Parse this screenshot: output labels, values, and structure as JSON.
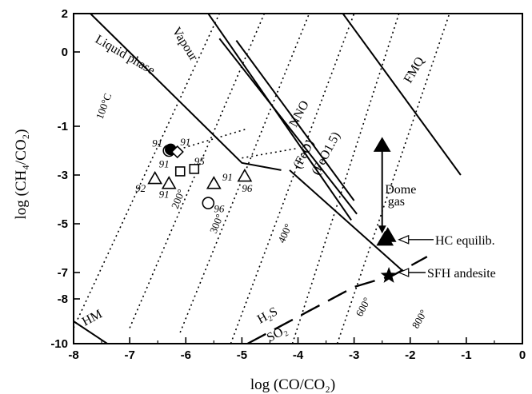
{
  "chart_data": {
    "type": "scatter",
    "xlabel": "log (CO/CO₂)",
    "ylabel": "log (CH₄/CO₂)",
    "xlim": [
      -8,
      0
    ],
    "ylim": [
      -10,
      2
    ],
    "y_scale_breaks": [
      [
        -10,
        -8
      ],
      [
        -8,
        -7
      ],
      [
        -7,
        -1
      ],
      [
        -1,
        2
      ]
    ],
    "x_ticks": [
      -8,
      -7,
      -6,
      -5,
      -4,
      -3,
      -2,
      -1,
      0
    ],
    "x_tick_labels": [
      "-8",
      "-7",
      "-6",
      "-5",
      "-4",
      "-3",
      "-2",
      "-1",
      "0"
    ],
    "y_ticks": [
      2,
      0,
      -1,
      -3,
      -5,
      -7,
      -8,
      -10
    ],
    "y_tick_labels": [
      "2",
      "0",
      "-1",
      "-3",
      "-5",
      "-7",
      "-8",
      "-10"
    ],
    "grid": false,
    "buffer_curves": [
      {
        "label": "Liquid phase",
        "points": [
          [
            -7.7,
            2.0
          ],
          [
            -5.0,
            -2.5
          ],
          [
            -4.3,
            -2.8
          ]
        ]
      },
      {
        "label": "Vapour",
        "points": [
          [
            -5.6,
            2.0
          ],
          [
            -3.05,
            -4.85
          ]
        ]
      },
      {
        "label": "NNO",
        "points": [
          [
            -5.1,
            0.6
          ],
          [
            -3.0,
            -4.05
          ]
        ]
      },
      {
        "label": "(FeO)",
        "points": [
          [
            -5.4,
            0.7
          ],
          [
            -2.95,
            -4.6
          ]
        ]
      },
      {
        "label": "(FeO1.5)",
        "points": [
          [
            -4.15,
            -2.8
          ],
          [
            -2.1,
            -7.0
          ]
        ]
      },
      {
        "label": "FMQ",
        "points": [
          [
            -3.2,
            2.0
          ],
          [
            -1.1,
            -3.0
          ]
        ]
      },
      {
        "label": "HM",
        "points": [
          [
            -8.0,
            -9.0
          ],
          [
            -7.4,
            -10.0
          ]
        ]
      }
    ],
    "isotherms": [
      {
        "label": "100°C",
        "points": [
          [
            -8.0,
            -9.3
          ],
          [
            -5.4,
            2.0
          ]
        ]
      },
      {
        "label": "200°",
        "points": [
          [
            -7.0,
            -9.3
          ],
          [
            -4.6,
            2.0
          ]
        ]
      },
      {
        "label": "300°",
        "points": [
          [
            -6.1,
            -9.5
          ],
          [
            -3.8,
            2.0
          ]
        ]
      },
      {
        "label": "400°",
        "points": [
          [
            -5.2,
            -10.0
          ],
          [
            -3.0,
            2.0
          ]
        ]
      },
      {
        "label": "600°",
        "points": [
          [
            -4.1,
            -10.0
          ],
          [
            -2.2,
            2.0
          ]
        ]
      },
      {
        "label": "800°",
        "points": [
          [
            -3.3,
            -10.0
          ],
          [
            -1.3,
            2.0
          ]
        ]
      }
    ],
    "dotted_connectors": [
      {
        "points": [
          [
            -6.2,
            -2.0
          ],
          [
            -4.9,
            -1.1
          ]
        ]
      },
      {
        "points": [
          [
            -5.0,
            -2.3
          ],
          [
            -4.0,
            -1.9
          ]
        ]
      }
    ],
    "so2_h2s_boundary": {
      "label_upper": "H₂S",
      "label_lower": "SO₂",
      "points": [
        [
          -4.9,
          -10.0
        ],
        [
          -3.0,
          -7.55
        ],
        [
          -2.3,
          -7.1
        ],
        [
          -1.7,
          -6.35
        ]
      ]
    },
    "series": [
      {
        "marker": "open-circle",
        "points": [
          {
            "x": -6.3,
            "y": -2.0,
            "label": "91"
          },
          {
            "x": -5.6,
            "y": -4.15,
            "label": "96"
          }
        ]
      },
      {
        "marker": "filled-circle",
        "points": [
          {
            "x": -6.27,
            "y": -1.95,
            "label": ""
          }
        ]
      },
      {
        "marker": "open-diamond",
        "points": [
          {
            "x": -6.15,
            "y": -2.05,
            "label": "91"
          }
        ]
      },
      {
        "marker": "open-square",
        "points": [
          {
            "x": -6.1,
            "y": -2.85,
            "label": "91"
          },
          {
            "x": -5.85,
            "y": -2.75,
            "label": "95"
          }
        ]
      },
      {
        "marker": "open-triangle",
        "points": [
          {
            "x": -6.55,
            "y": -3.15,
            "label": "92"
          },
          {
            "x": -6.3,
            "y": -3.35,
            "label": "91"
          },
          {
            "x": -5.5,
            "y": -3.35,
            "label": "91"
          },
          {
            "x": -4.95,
            "y": -3.05,
            "label": "96"
          }
        ]
      },
      {
        "marker": "filled-triangle",
        "points": [
          {
            "x": -2.5,
            "y": -1.8,
            "label": ""
          },
          {
            "x": -2.45,
            "y": -5.65,
            "label": ""
          },
          {
            "x": -2.4,
            "y": -5.5,
            "label": ""
          }
        ]
      },
      {
        "marker": "filled-star",
        "points": [
          {
            "x": -2.38,
            "y": -7.12,
            "label": ""
          }
        ]
      }
    ],
    "annotations": [
      {
        "text_lines": [
          "Dome",
          "gas"
        ],
        "arrow_from": [
          -2.5,
          -1.95
        ],
        "arrow_to": [
          -2.5,
          -5.4
        ]
      },
      {
        "text": "HC equilib.",
        "arrow_tip": [
          -2.2,
          -5.65
        ]
      },
      {
        "text": "SFH andesite",
        "arrow_tip": [
          -2.2,
          -7.0
        ]
      }
    ]
  }
}
